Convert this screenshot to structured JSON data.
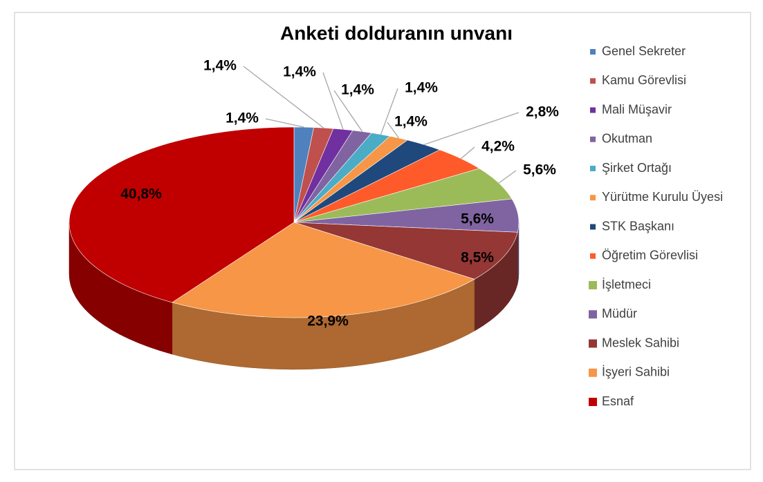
{
  "chart_data": {
    "type": "pie",
    "title": "Anketi dolduranın unvanı",
    "categories": [
      "Genel Sekreter",
      "Kamu Görevlisi",
      "Mali Müşavir",
      "Okutman",
      "Şirket Ortağı",
      "Yürütme Kurulu Üyesi",
      "STK Başkanı",
      "Öğretim Görevlisi",
      "İşletmeci",
      "Müdür",
      "Meslek Sahibi",
      "İşyeri Sahibi",
      "Esnaf"
    ],
    "values": [
      1.4,
      1.4,
      1.4,
      1.4,
      1.4,
      1.4,
      2.8,
      4.2,
      5.6,
      5.6,
      8.5,
      23.9,
      40.8
    ],
    "value_labels": [
      "1,4%",
      "1,4%",
      "1,4%",
      "1,4%",
      "1,4%",
      "1,4%",
      "2,8%",
      "4,2%",
      "5,6%",
      "5,6%",
      "8,5%",
      "23,9%",
      "40,8%"
    ],
    "colors": [
      "#4f81bd",
      "#c0504d",
      "#7030a0",
      "#8064a2",
      "#4bacc6",
      "#f79646",
      "#1f497d",
      "#ff5b2a",
      "#9bbb59",
      "#8064a2",
      "#953735",
      "#f79646",
      "#c00000"
    ],
    "legend": "right"
  }
}
